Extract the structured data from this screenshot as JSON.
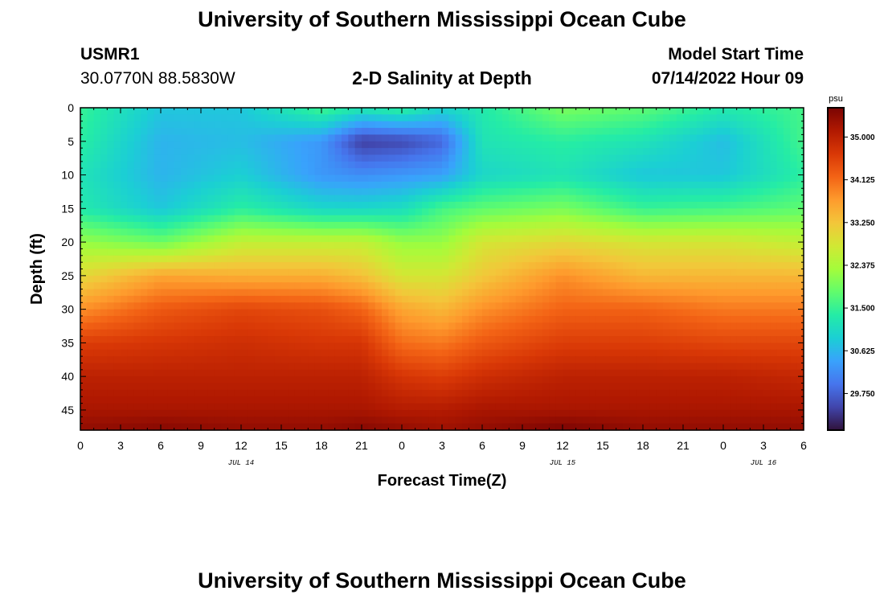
{
  "header": {
    "title": "University of Southern Mississippi Ocean Cube",
    "station_id": "USMR1",
    "coordinates": "30.0770N  88.5830W",
    "plot_title": "2-D Salinity at Depth",
    "model_start_label": "Model Start Time",
    "model_start_value": "07/14/2022 Hour 09"
  },
  "footer": {
    "title": "University of Southern Mississippi Ocean Cube"
  },
  "colors": {
    "background": "#ffffff",
    "text": "#000000",
    "colormap": [
      "#30123b",
      "#4145ab",
      "#4675ed",
      "#39a2fc",
      "#1bcfd4",
      "#24eca6",
      "#61fc6c",
      "#a4fc3b",
      "#d1e834",
      "#f3c63a",
      "#fe9b2d",
      "#f36315",
      "#d93806",
      "#b11901",
      "#7a0403"
    ]
  },
  "chart_data": {
    "type": "heatmap",
    "title": "2-D Salinity at Depth",
    "xlabel": "Forecast Time(Z)",
    "ylabel": "Depth (ft)",
    "x_range_hours": [
      0,
      54
    ],
    "y_range_ft": [
      0,
      48
    ],
    "x_ticks": [
      0,
      3,
      6,
      9,
      12,
      15,
      18,
      21,
      24,
      27,
      30,
      33,
      36,
      39,
      42,
      45,
      48,
      51,
      54
    ],
    "x_tick_labels": [
      "0",
      "3",
      "6",
      "9",
      "12",
      "15",
      "18",
      "21",
      "0",
      "3",
      "6",
      "9",
      "12",
      "15",
      "18",
      "21",
      "0",
      "3",
      "6"
    ],
    "y_ticks": [
      0,
      5,
      10,
      15,
      20,
      25,
      30,
      35,
      40,
      45
    ],
    "y_tick_labels": [
      "0",
      "5",
      "10",
      "15",
      "20",
      "25",
      "30",
      "35",
      "40",
      "45"
    ],
    "day_labels": [
      {
        "text": "JUL 14",
        "x": 12
      },
      {
        "text": "JUL 15",
        "x": 36
      },
      {
        "text": "JUL 16",
        "x": 51
      }
    ],
    "colorbar": {
      "unit": "psu",
      "min": 29.0,
      "max": 35.6,
      "ticks": [
        35.0,
        34.125,
        33.25,
        32.375,
        31.5,
        30.625,
        29.75
      ],
      "tick_labels": [
        "35.000",
        "34.125",
        "33.250",
        "32.375",
        "31.500",
        "30.625",
        "29.750"
      ]
    },
    "grid_times": [
      0,
      6,
      12,
      18,
      21,
      24,
      27,
      30,
      36,
      42,
      48,
      54
    ],
    "grid_depths": [
      0,
      5,
      10,
      15,
      20,
      25,
      30,
      35,
      40,
      45,
      48
    ],
    "salinity_psu": [
      [
        31.5,
        30.8,
        30.8,
        31.6,
        31.3,
        31.5,
        31.0,
        31.3,
        32.0,
        31.8,
        31.3,
        31.6
      ],
      [
        31.4,
        30.6,
        30.7,
        30.3,
        29.4,
        29.5,
        29.8,
        31.2,
        31.4,
        31.2,
        30.7,
        31.6
      ],
      [
        31.2,
        30.6,
        30.9,
        30.3,
        30.2,
        30.3,
        30.4,
        31.0,
        31.2,
        30.8,
        30.8,
        31.4
      ],
      [
        31.3,
        30.8,
        31.4,
        31.0,
        31.0,
        31.1,
        31.6,
        31.8,
        32.0,
        31.5,
        31.6,
        31.8
      ],
      [
        32.2,
        31.9,
        32.6,
        32.6,
        32.6,
        32.2,
        32.2,
        32.8,
        33.0,
        32.8,
        32.8,
        32.6
      ],
      [
        33.0,
        33.6,
        33.5,
        33.5,
        33.3,
        32.8,
        32.8,
        33.2,
        33.8,
        33.4,
        33.4,
        33.4
      ],
      [
        33.8,
        34.3,
        34.5,
        34.4,
        34.2,
        33.6,
        33.4,
        33.8,
        34.2,
        34.2,
        34.0,
        34.0
      ],
      [
        34.6,
        34.7,
        34.8,
        34.7,
        34.7,
        34.1,
        34.0,
        34.3,
        34.6,
        34.6,
        34.5,
        34.5
      ],
      [
        35.0,
        35.0,
        35.0,
        35.0,
        35.0,
        34.7,
        34.6,
        34.8,
        35.0,
        35.0,
        35.0,
        34.9
      ],
      [
        35.2,
        35.2,
        35.2,
        35.2,
        35.2,
        35.1,
        35.1,
        35.2,
        35.2,
        35.2,
        35.2,
        35.2
      ],
      [
        35.4,
        35.5,
        35.4,
        35.4,
        35.5,
        35.4,
        35.3,
        35.4,
        35.6,
        35.4,
        35.4,
        35.4
      ]
    ]
  }
}
